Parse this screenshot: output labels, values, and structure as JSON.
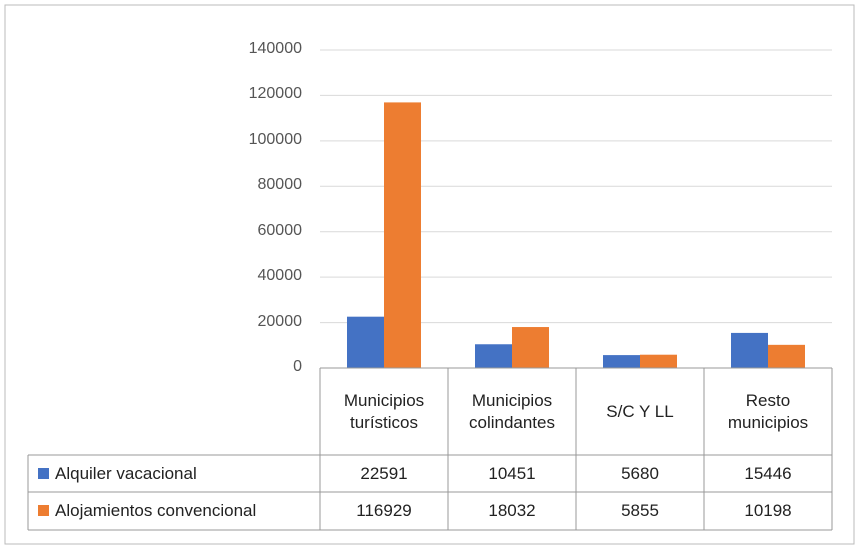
{
  "chart_data": {
    "type": "bar",
    "categories": [
      "Municipios turísticos",
      "Municipios colindantes",
      "S/C Y LL",
      "Resto municipios"
    ],
    "series": [
      {
        "name": "Alquiler vacacional",
        "color": "#4472c4",
        "values": [
          22591,
          10451,
          5680,
          15446
        ]
      },
      {
        "name": "Alojamientos convencional",
        "color": "#ed7d31",
        "values": [
          116929,
          18032,
          5855,
          10198
        ]
      }
    ],
    "ylim": [
      0,
      140000
    ],
    "yticks": [
      0,
      20000,
      40000,
      60000,
      80000,
      100000,
      120000,
      140000
    ],
    "grid": true
  }
}
